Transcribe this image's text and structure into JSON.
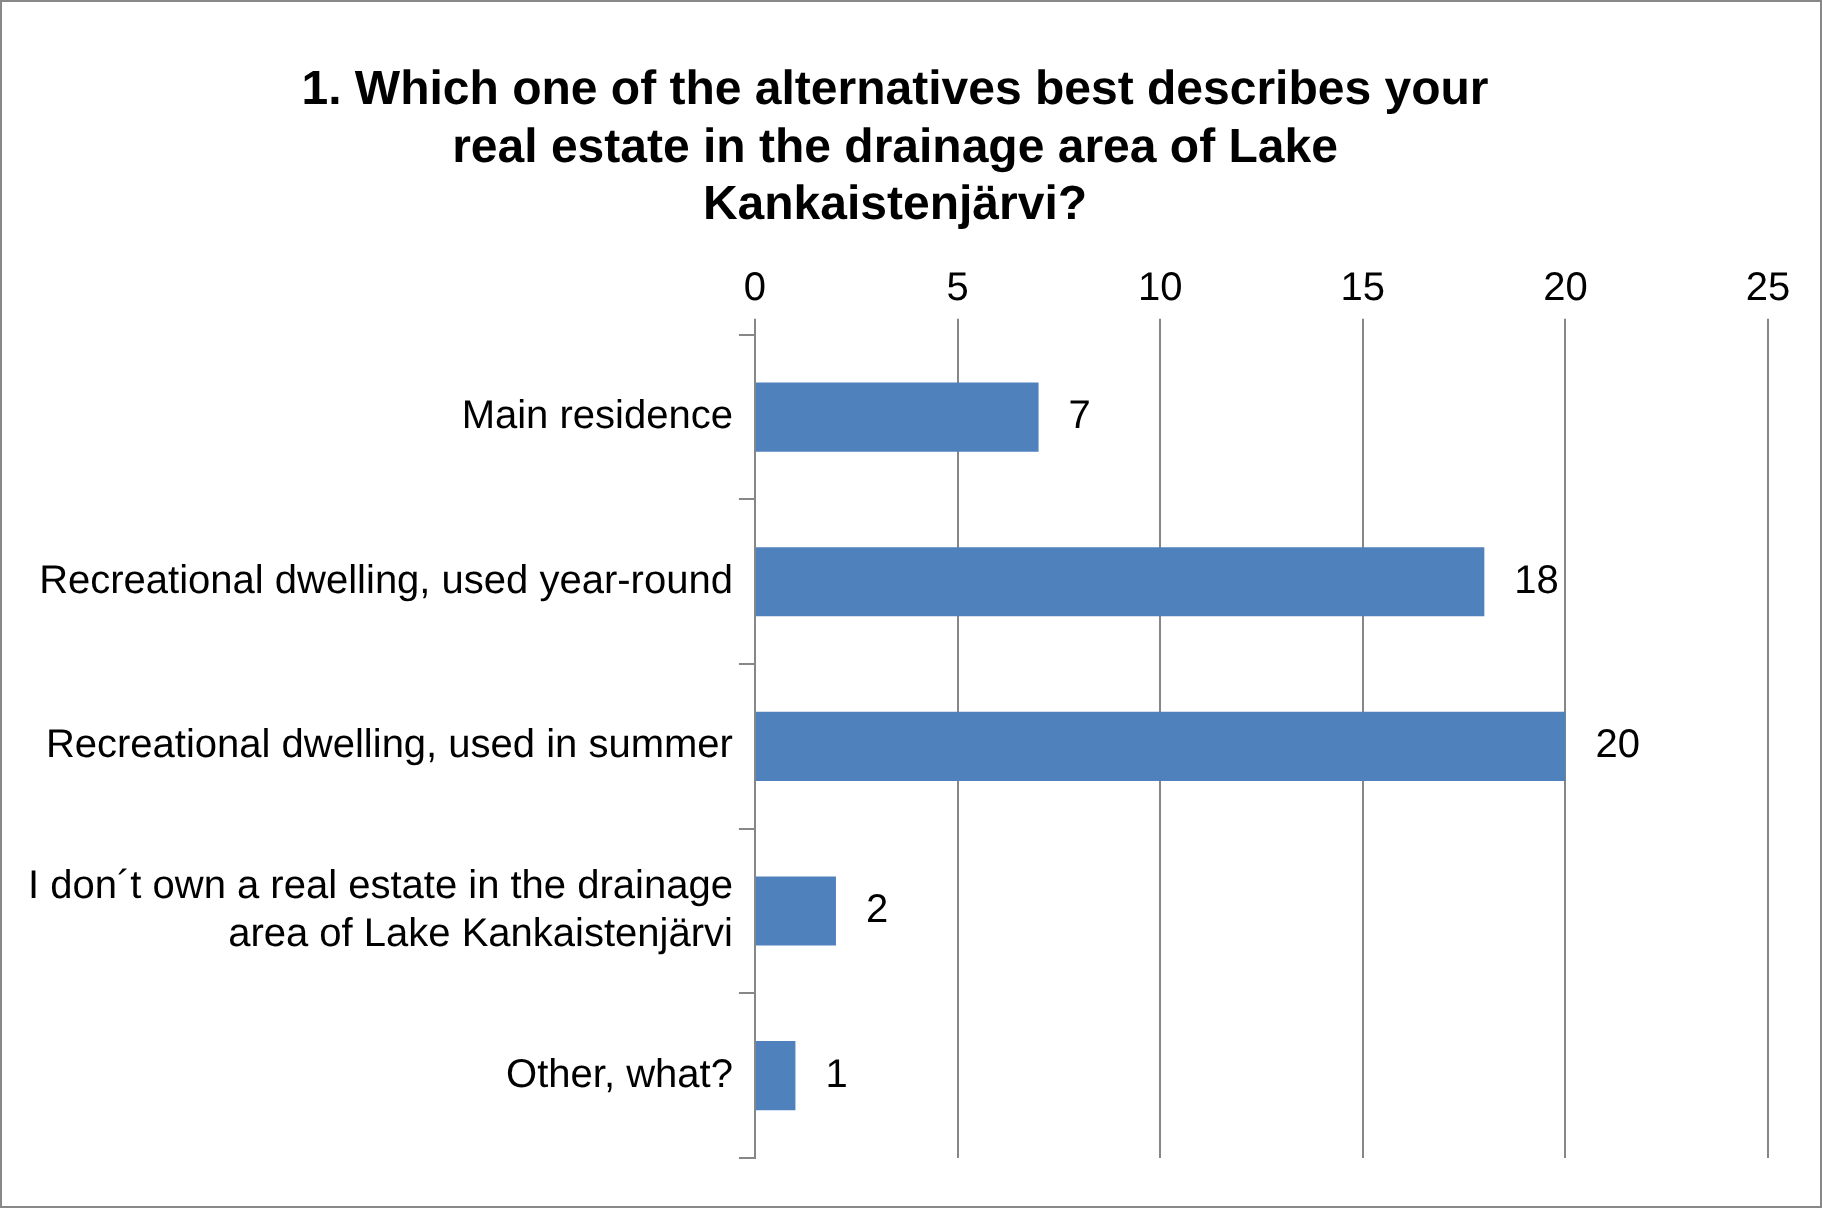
{
  "chart_data": {
    "type": "bar",
    "orientation": "horizontal",
    "title": "1.  Which one of the alternatives best describes your real estate in the drainage area of Lake Kankaistenjärvi?",
    "categories": [
      "Main residence",
      "Recreational dwelling, used year-round",
      "Recreational dwelling, used in summer",
      "I don´t own a real estate in the drainage area of Lake Kankaistenjärvi",
      "Other, what?"
    ],
    "values": [
      7,
      18,
      20,
      2,
      1
    ],
    "color": "#4f81bd",
    "xlim": [
      0,
      25
    ],
    "xticks": [
      0,
      5,
      10,
      15,
      20,
      25
    ],
    "grid": "x",
    "data_labels": true,
    "legend": false
  }
}
